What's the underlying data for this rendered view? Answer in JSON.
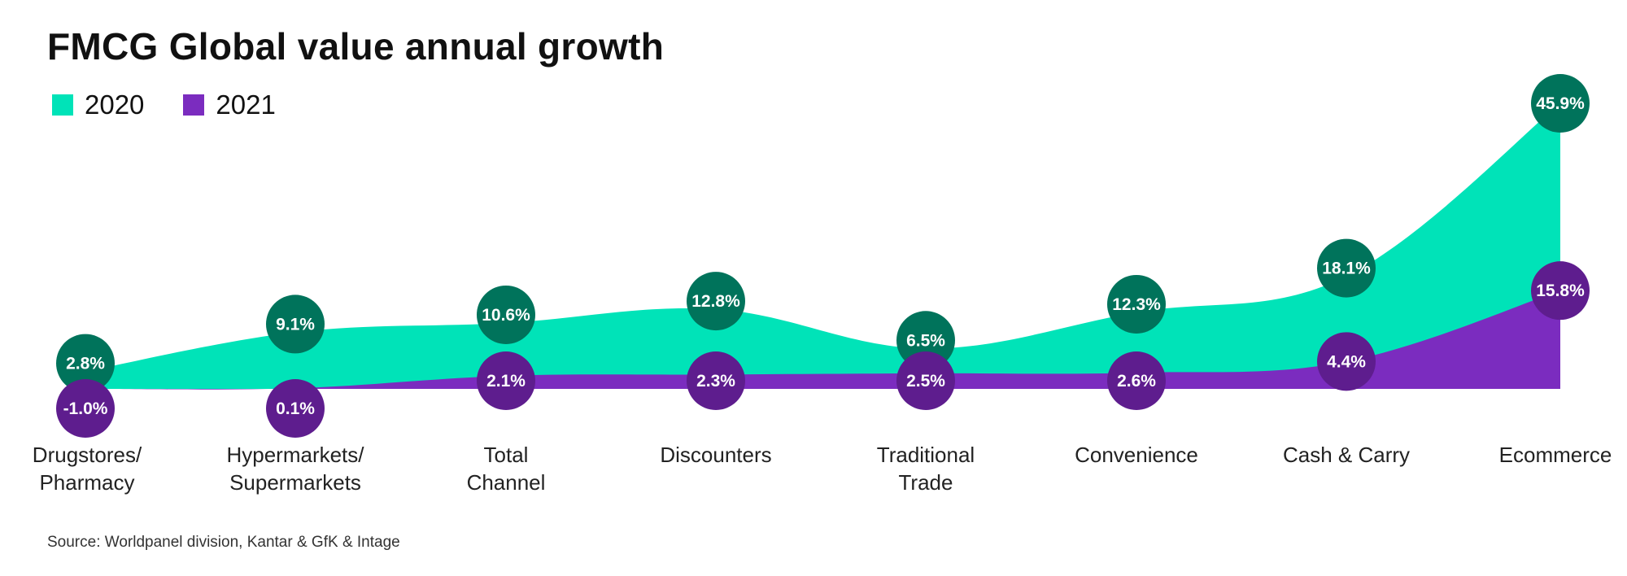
{
  "title": "FMCG Global value annual growth",
  "source": "Source: Worldpanel division, Kantar & GfK & Intage",
  "colors": {
    "area_2020": "#00E3B8",
    "area_2021": "#7B2CBF",
    "bubble_2020": "#00735B",
    "bubble_2021": "#5E1D8E"
  },
  "chart_data": {
    "type": "area",
    "title": "FMCG Global value annual growth",
    "categories": [
      [
        "Drugstores/",
        "Pharmacy"
      ],
      [
        "Hypermarkets/",
        "Supermarkets"
      ],
      [
        "Total",
        "Channel"
      ],
      [
        "Discounters"
      ],
      [
        "Traditional",
        "Trade"
      ],
      [
        "Convenience"
      ],
      [
        "Cash & Carry"
      ],
      [
        "Ecommerce"
      ]
    ],
    "series": [
      {
        "name": "2020",
        "values": [
          2.8,
          9.1,
          10.6,
          12.8,
          6.5,
          12.3,
          18.1,
          45.9
        ],
        "labels": [
          "2.8%",
          "9.1%",
          "10.6%",
          "12.8%",
          "6.5%",
          "12.3%",
          "18.1%",
          "45.9%"
        ]
      },
      {
        "name": "2021",
        "values": [
          -1.0,
          0.1,
          2.1,
          2.3,
          2.5,
          2.6,
          4.4,
          15.8
        ],
        "labels": [
          "-1.0%",
          "0.1%",
          "2.1%",
          "2.3%",
          "2.5%",
          "2.6%",
          "4.4%",
          "15.8%"
        ]
      }
    ],
    "legend_position": "top-left",
    "grid": false
  }
}
